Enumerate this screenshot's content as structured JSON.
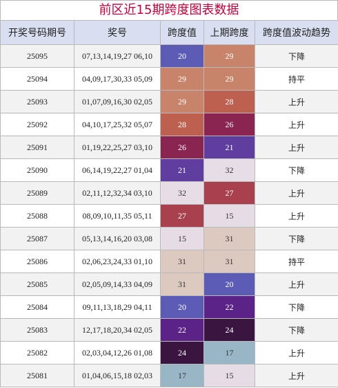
{
  "title": "前区近15期跨度图表数据",
  "headers": [
    "开奖号码期号",
    "奖号",
    "跨度值",
    "上期跨度",
    "跨度值波动趋势"
  ],
  "rows": [
    {
      "issue": "25095",
      "numbers": "07,13,14,19,27 06,10",
      "span": "20",
      "prev_span": "29",
      "trend": "下降"
    },
    {
      "issue": "25094",
      "numbers": "04,09,17,30,33 05,09",
      "span": "29",
      "prev_span": "29",
      "trend": "持平"
    },
    {
      "issue": "25093",
      "numbers": "01,07,09,16,30 02,05",
      "span": "29",
      "prev_span": "28",
      "trend": "上升"
    },
    {
      "issue": "25092",
      "numbers": "04,10,17,25,32 05,07",
      "span": "28",
      "prev_span": "26",
      "trend": "上升"
    },
    {
      "issue": "25091",
      "numbers": "01,19,22,25,27 03,10",
      "span": "26",
      "prev_span": "21",
      "trend": "上升"
    },
    {
      "issue": "25090",
      "numbers": "06,14,19,22,27 01,04",
      "span": "21",
      "prev_span": "32",
      "trend": "下降"
    },
    {
      "issue": "25089",
      "numbers": "02,11,12,32,34 03,10",
      "span": "32",
      "prev_span": "27",
      "trend": "上升"
    },
    {
      "issue": "25088",
      "numbers": "08,09,10,11,35 05,11",
      "span": "27",
      "prev_span": "15",
      "trend": "上升"
    },
    {
      "issue": "25087",
      "numbers": "05,13,14,16,20 03,08",
      "span": "15",
      "prev_span": "31",
      "trend": "下降"
    },
    {
      "issue": "25086",
      "numbers": "02,06,23,24,33 01,10",
      "span": "31",
      "prev_span": "31",
      "trend": "持平"
    },
    {
      "issue": "25085",
      "numbers": "02,05,09,14,33 04,09",
      "span": "31",
      "prev_span": "20",
      "trend": "上升"
    },
    {
      "issue": "25084",
      "numbers": "09,11,13,18,29 04,11",
      "span": "20",
      "prev_span": "22",
      "trend": "下降"
    },
    {
      "issue": "25083",
      "numbers": "12,17,18,20,34 02,05",
      "span": "22",
      "prev_span": "24",
      "trend": "下降"
    },
    {
      "issue": "25082",
      "numbers": "02,03,04,12,26 01,08",
      "span": "24",
      "prev_span": "17",
      "trend": "上升"
    },
    {
      "issue": "25081",
      "numbers": "01,04,06,15,18 02,03",
      "span": "17",
      "prev_span": "15",
      "trend": "上升"
    }
  ],
  "span_colors": {
    "15": {
      "bg": "#e6dce6",
      "fg": "#333333"
    },
    "17": {
      "bg": "#98b6c6",
      "fg": "#333333"
    },
    "20": {
      "bg": "#5c5cb6",
      "fg": "#ffffff"
    },
    "21": {
      "bg": "#5f3ea0",
      "fg": "#ffffff"
    },
    "22": {
      "bg": "#5b2287",
      "fg": "#ffffff"
    },
    "24": {
      "bg": "#3a1540",
      "fg": "#ffffff"
    },
    "26": {
      "bg": "#8a2450",
      "fg": "#ffffff"
    },
    "27": {
      "bg": "#a8404e",
      "fg": "#ffffff"
    },
    "28": {
      "bg": "#be6050",
      "fg": "#ffffff"
    },
    "29": {
      "bg": "#c8846a",
      "fg": "#ffffff"
    },
    "31": {
      "bg": "#dcc9c0",
      "fg": "#333333"
    },
    "32": {
      "bg": "#e6dde6",
      "fg": "#333333"
    }
  },
  "colors": {
    "title_text": "#c0003a",
    "header_bg": "#d9dff0",
    "border": "#b9b9b9",
    "row_alt_bg": "#f2f2f2"
  }
}
